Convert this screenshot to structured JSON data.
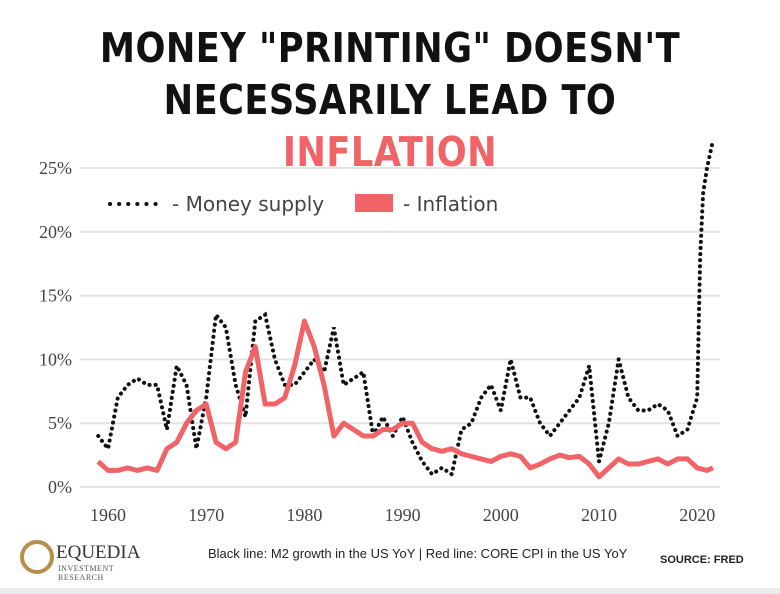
{
  "title": {
    "line1": "MONEY \"PRINTING\" DOESN'T",
    "line2a": "NECESSARILY LEAD TO ",
    "line2b": "INFLATION"
  },
  "colors": {
    "money": "#111111",
    "inflation": "#f06468",
    "title_highlight": "#f06468"
  },
  "chart_data": {
    "type": "line",
    "ylim": [
      0,
      26
    ],
    "xlim": [
      1958.5,
      2022
    ],
    "yticks": [
      "0%",
      "5%",
      "10%",
      "15%",
      "20%",
      "25%"
    ],
    "xticks": [
      "1960",
      "1970",
      "1980",
      "1990",
      "2000",
      "2010",
      "2020"
    ],
    "grid": "horizontal",
    "legend": "top-left",
    "series": [
      {
        "name": "Money supply",
        "style": "dotted",
        "x": [
          1959,
          1960,
          1961,
          1962,
          1963,
          1964,
          1965,
          1966,
          1967,
          1968,
          1969,
          1970,
          1971,
          1972,
          1973,
          1974,
          1975,
          1976,
          1977,
          1978,
          1979,
          1980,
          1981,
          1982,
          1983,
          1984,
          1985,
          1986,
          1987,
          1988,
          1989,
          1990,
          1991,
          1992,
          1993,
          1994,
          1995,
          1996,
          1997,
          1998,
          1999,
          2000,
          2001,
          2002,
          2003,
          2004,
          2005,
          2006,
          2007,
          2008,
          2009,
          2010,
          2011,
          2012,
          2013,
          2014,
          2015,
          2016,
          2017,
          2018,
          2019,
          2020,
          2020.3,
          2020.6,
          2021,
          2021.5
        ],
        "values": [
          4,
          3,
          7,
          8,
          8.5,
          8,
          8,
          4.5,
          9.5,
          8,
          3,
          7,
          13.5,
          12.5,
          8,
          5.5,
          13,
          13.5,
          10,
          8,
          8,
          9,
          10,
          9,
          12.5,
          8,
          8.5,
          9,
          4,
          5.5,
          4,
          5.5,
          3.5,
          2,
          1,
          1.5,
          1,
          4.5,
          5,
          7,
          8,
          6,
          10,
          7,
          7,
          5,
          4,
          5,
          6,
          7,
          9.5,
          2,
          5,
          10,
          7,
          6,
          6,
          6.5,
          6,
          4,
          4.5,
          7,
          18,
          23,
          25,
          26.8
        ]
      },
      {
        "name": "Inflation",
        "style": "solid",
        "x": [
          1959,
          1960,
          1961,
          1962,
          1963,
          1964,
          1965,
          1966,
          1967,
          1968,
          1969,
          1970,
          1971,
          1972,
          1973,
          1974,
          1975,
          1976,
          1977,
          1978,
          1979,
          1980,
          1981,
          1982,
          1983,
          1984,
          1985,
          1986,
          1987,
          1988,
          1989,
          1990,
          1991,
          1992,
          1993,
          1994,
          1995,
          1996,
          1997,
          1998,
          1999,
          2000,
          2001,
          2002,
          2003,
          2004,
          2005,
          2006,
          2007,
          2008,
          2009,
          2010,
          2011,
          2012,
          2013,
          2014,
          2015,
          2016,
          2017,
          2018,
          2019,
          2020,
          2021,
          2021.6
        ],
        "values": [
          2,
          1.3,
          1.3,
          1.5,
          1.3,
          1.5,
          1.3,
          3,
          3.5,
          5,
          6,
          6.5,
          3.5,
          3,
          3.5,
          9,
          11,
          6.5,
          6.5,
          7,
          9.5,
          13,
          11,
          8,
          4,
          5,
          4.5,
          4,
          4,
          4.5,
          4.5,
          5,
          5,
          3.5,
          3,
          2.8,
          3,
          2.6,
          2.4,
          2.2,
          2,
          2.4,
          2.6,
          2.4,
          1.5,
          1.8,
          2.2,
          2.5,
          2.3,
          2.4,
          1.8,
          0.8,
          1.5,
          2.2,
          1.8,
          1.8,
          2,
          2.2,
          1.8,
          2.2,
          2.2,
          1.5,
          1.3,
          1.5
        ]
      }
    ]
  },
  "legend": {
    "money": "-  Money supply",
    "inflation": "-  Inflation"
  },
  "footer": {
    "logo_name": "EQUEDIA",
    "logo_sub": "INVESTMENT RESEARCH",
    "note": "Black line: M2 growth in the US YoY | Red line: CORE CPI in the US YoY",
    "source": "SOURCE:  FRED"
  }
}
